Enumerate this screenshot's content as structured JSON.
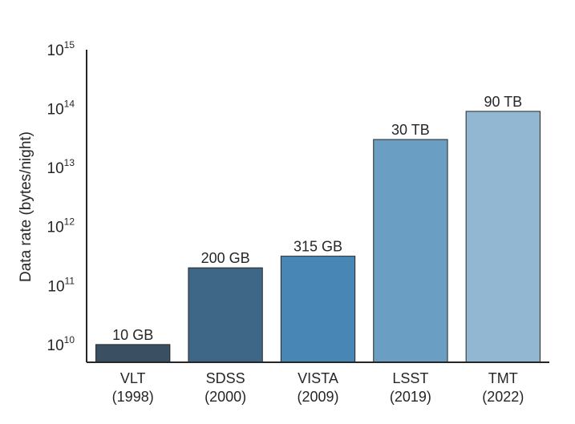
{
  "chart_data": {
    "type": "bar",
    "title": "",
    "xlabel": "",
    "ylabel": "Data rate (bytes/night)",
    "yscale": "log",
    "ylim": [
      5000000000.0,
      1000000000000000.0
    ],
    "yticks": [
      {
        "base": "10",
        "exp": "10",
        "value": 10000000000.0
      },
      {
        "base": "10",
        "exp": "11",
        "value": 100000000000.0
      },
      {
        "base": "10",
        "exp": "12",
        "value": 1000000000000.0
      },
      {
        "base": "10",
        "exp": "13",
        "value": 10000000000000.0
      },
      {
        "base": "10",
        "exp": "14",
        "value": 100000000000000.0
      },
      {
        "base": "10",
        "exp": "15",
        "value": 1000000000000000.0
      }
    ],
    "grid": false,
    "categories": [
      {
        "name": "VLT",
        "year": "(1998)"
      },
      {
        "name": "SDSS",
        "year": "(2000)"
      },
      {
        "name": "VISTA",
        "year": "(2009)"
      },
      {
        "name": "LSST",
        "year": "(2019)"
      },
      {
        "name": "TMT",
        "year": "(2022)"
      }
    ],
    "values": [
      10000000000.0,
      200000000000.0,
      315000000000.0,
      30000000000000.0,
      90000000000000.0
    ],
    "data_labels": [
      "10 GB",
      "200 GB",
      "315 GB",
      "30 TB",
      "90 TB"
    ],
    "colors": [
      "#3b4f63",
      "#3e6787",
      "#4886b5",
      "#6a9ec2",
      "#92b7d2"
    ]
  }
}
